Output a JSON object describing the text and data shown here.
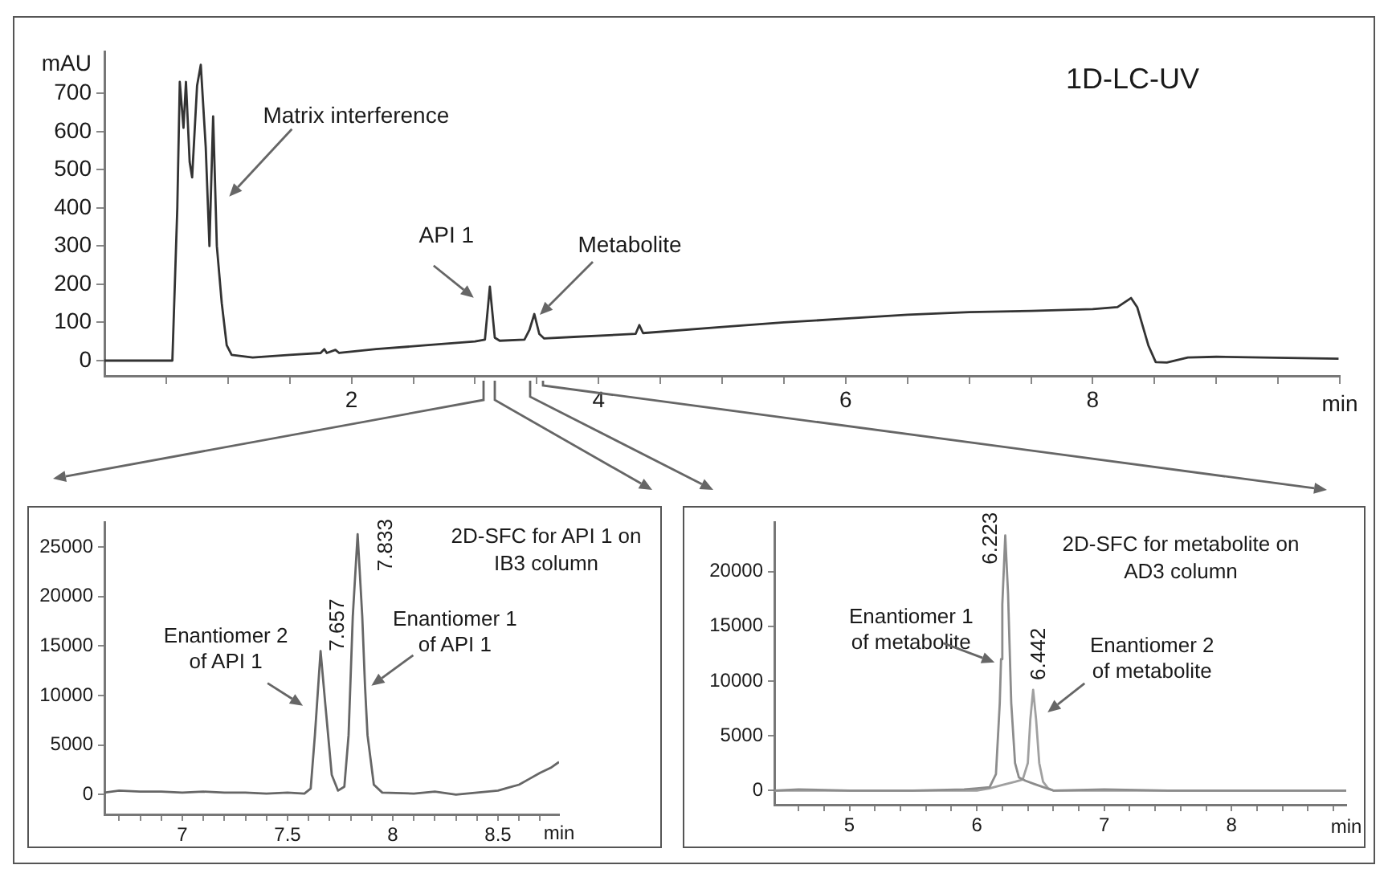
{
  "chart_data": [
    {
      "type": "line",
      "title": "1D-LC-UV",
      "ylabel": "mAU",
      "xlabel": "min",
      "color": "#333333",
      "x": [
        0,
        0.55,
        0.59,
        0.61,
        0.64,
        0.66,
        0.69,
        0.71,
        0.75,
        0.78,
        0.82,
        0.85,
        0.88,
        0.91,
        0.95,
        0.99,
        1.03,
        1.2,
        1.5,
        1.75,
        1.78,
        1.8,
        1.87,
        1.9,
        2.2,
        2.6,
        3.0,
        3.08,
        3.12,
        3.16,
        3.2,
        3.4,
        3.44,
        3.48,
        3.52,
        3.56,
        3.8,
        4.3,
        4.33,
        4.36,
        5.0,
        5.5,
        6.0,
        6.5,
        7.0,
        7.5,
        8.0,
        8.2,
        8.31,
        8.36,
        8.45,
        8.51,
        8.6,
        8.77,
        9.0,
        9.99
      ],
      "values": [
        0,
        0,
        400,
        730,
        610,
        730,
        520,
        480,
        720,
        775,
        560,
        300,
        640,
        300,
        150,
        40,
        15,
        8,
        15,
        20,
        30,
        20,
        28,
        20,
        30,
        40,
        50,
        55,
        194,
        60,
        52,
        55,
        80,
        122,
        70,
        58,
        62,
        70,
        93,
        72,
        88,
        100,
        110,
        120,
        127,
        130,
        135,
        140,
        164,
        140,
        40,
        -4,
        -5,
        8,
        10,
        5
      ],
      "xlim": [
        0,
        10
      ],
      "ylim": [
        -40,
        810
      ],
      "xticks": [
        {
          "value": 0.5,
          "label": null
        },
        {
          "value": 1,
          "label": null
        },
        {
          "value": 1.5,
          "label": null
        },
        2,
        {
          "value": 2.5,
          "label": null
        },
        {
          "value": 3,
          "label": null
        },
        {
          "value": 3.5,
          "label": null
        },
        4,
        {
          "value": 4.5,
          "label": null
        },
        {
          "value": 5,
          "label": null
        },
        {
          "value": 5.5,
          "label": null
        },
        6,
        {
          "value": 6.5,
          "label": null
        },
        {
          "value": 7,
          "label": null
        },
        {
          "value": 7.5,
          "label": null
        },
        8,
        {
          "value": 8.5,
          "label": null
        },
        {
          "value": 9,
          "label": null
        },
        {
          "value": 9.5,
          "label": null
        },
        {
          "value": 10,
          "label": null
        }
      ],
      "yticks": [
        0,
        100,
        200,
        300,
        400,
        500,
        600,
        700
      ],
      "grid": false,
      "legend": false,
      "annotations": [
        {
          "text": "Matrix interference",
          "x": 0.88,
          "y": 640
        },
        {
          "text": "API 1",
          "x": 3.12,
          "y": 194
        },
        "Metabolite"
      ]
    },
    {
      "type": "line",
      "title": "2D-SFC for API 1 on IB3 column",
      "xlabel": "min",
      "color": "#666666",
      "x": [
        6.63,
        6.7,
        6.8,
        6.9,
        7.0,
        7.1,
        7.2,
        7.3,
        7.4,
        7.5,
        7.58,
        7.61,
        7.63,
        7.657,
        7.68,
        7.71,
        7.74,
        7.77,
        7.79,
        7.81,
        7.833,
        7.855,
        7.868,
        7.88,
        7.91,
        7.95,
        8.1,
        8.2,
        8.3,
        8.4,
        8.5,
        8.55,
        8.6,
        8.65,
        8.7,
        8.75,
        8.79
      ],
      "values": [
        200,
        400,
        300,
        300,
        200,
        300,
        200,
        200,
        100,
        200,
        100,
        600,
        6000,
        14500,
        9000,
        2000,
        400,
        800,
        6000,
        18000,
        26300,
        18000,
        11000,
        6000,
        1000,
        200,
        100,
        300,
        0,
        200,
        400,
        700,
        1000,
        1600,
        2200,
        2700,
        3300
      ],
      "xlim": [
        6.63,
        8.79
      ],
      "ylim": [
        -2000,
        27500
      ],
      "xticks": [
        {
          "value": 6.7,
          "label": null
        },
        {
          "value": 6.8,
          "label": null
        },
        {
          "value": 6.9,
          "label": null
        },
        7,
        {
          "value": 7.1,
          "label": null
        },
        {
          "value": 7.2,
          "label": null
        },
        {
          "value": 7.3,
          "label": null
        },
        {
          "value": 7.4,
          "label": null
        },
        7.5,
        {
          "value": 7.6,
          "label": null
        },
        {
          "value": 7.7,
          "label": null
        },
        {
          "value": 7.8,
          "label": null
        },
        {
          "value": 7.9,
          "label": null
        },
        8,
        {
          "value": 8.1,
          "label": null
        },
        {
          "value": 8.2,
          "label": null
        },
        {
          "value": 8.3,
          "label": null
        },
        {
          "value": 8.4,
          "label": null
        },
        8.5,
        {
          "value": 8.6,
          "label": null
        },
        {
          "value": 8.7,
          "label": null
        }
      ],
      "yticks": [
        0,
        5000,
        10000,
        15000,
        20000,
        25000
      ],
      "grid": false,
      "legend": false,
      "annotations": [
        {
          "text": "Enantiomer 2 of API 1",
          "x": 7.657,
          "y": 14500
        },
        {
          "text": "Enantiomer 1 of API 1",
          "x": 7.868,
          "y": 11000
        },
        {
          "text": "7.657",
          "x": 7.657,
          "y": 14500
        },
        {
          "text": "7.833",
          "x": 7.833,
          "y": 26300
        }
      ]
    },
    {
      "type": "line",
      "title": "2D-SFC for metabolite on AD3 column",
      "xlabel": "min",
      "series": [
        {
          "color": "#8c8c8c",
          "x": [
            4.41,
            4.6,
            5.0,
            5.5,
            5.9,
            6.0,
            6.1,
            6.15,
            6.18,
            6.19,
            6.2,
            6.223,
            6.245,
            6.27,
            6.3,
            6.33,
            6.38,
            6.45,
            6.5,
            6.55,
            6.6,
            7.0,
            7.5,
            8.0,
            8.5,
            8.9
          ],
          "values": [
            0,
            100,
            0,
            0,
            100,
            200,
            300,
            1500,
            8000,
            12000,
            17000,
            23300,
            18000,
            8000,
            2500,
            1200,
            900,
            600,
            400,
            200,
            0,
            100,
            0,
            0,
            0,
            0
          ]
        },
        {
          "color": "#a0a0a0",
          "x": [
            4.41,
            6.0,
            6.1,
            6.2,
            6.3,
            6.36,
            6.4,
            6.42,
            6.442,
            6.465,
            6.49,
            6.52,
            6.56,
            6.6,
            8.9
          ],
          "values": [
            0,
            0,
            200,
            500,
            800,
            1000,
            2500,
            6500,
            9200,
            6500,
            2500,
            800,
            200,
            0,
            0
          ]
        }
      ],
      "xlim": [
        4.41,
        8.9
      ],
      "ylim": [
        -1300,
        24500
      ],
      "xticks": [
        {
          "value": 4.6,
          "label": null
        },
        {
          "value": 4.8,
          "label": null
        },
        5,
        {
          "value": 5.2,
          "label": null
        },
        {
          "value": 5.4,
          "label": null
        },
        {
          "value": 5.6,
          "label": null
        },
        {
          "value": 5.8,
          "label": null
        },
        6,
        {
          "value": 6.2,
          "label": null
        },
        {
          "value": 6.4,
          "label": null
        },
        {
          "value": 6.6,
          "label": null
        },
        {
          "value": 6.8,
          "label": null
        },
        7,
        {
          "value": 7.2,
          "label": null
        },
        {
          "value": 7.4,
          "label": null
        },
        {
          "value": 7.6,
          "label": null
        },
        {
          "value": 7.8,
          "label": null
        },
        8,
        {
          "value": 8.2,
          "label": null
        },
        {
          "value": 8.4,
          "label": null
        },
        {
          "value": 8.6,
          "label": null
        },
        {
          "value": 8.8,
          "label": null
        }
      ],
      "yticks": [
        0,
        5000,
        10000,
        15000,
        20000
      ],
      "grid": false,
      "legend": false,
      "annotations": [
        {
          "text": "Enantiomer 1 of metabolite",
          "x": 6.19,
          "y": 12000
        },
        {
          "text": "Enantiomer 2 of metabolite",
          "x": 6.442,
          "y": 9200
        },
        {
          "text": "6.223",
          "x": 6.223,
          "y": 23300
        },
        {
          "text": "6.442",
          "x": 6.442,
          "y": 9200
        }
      ]
    }
  ]
}
